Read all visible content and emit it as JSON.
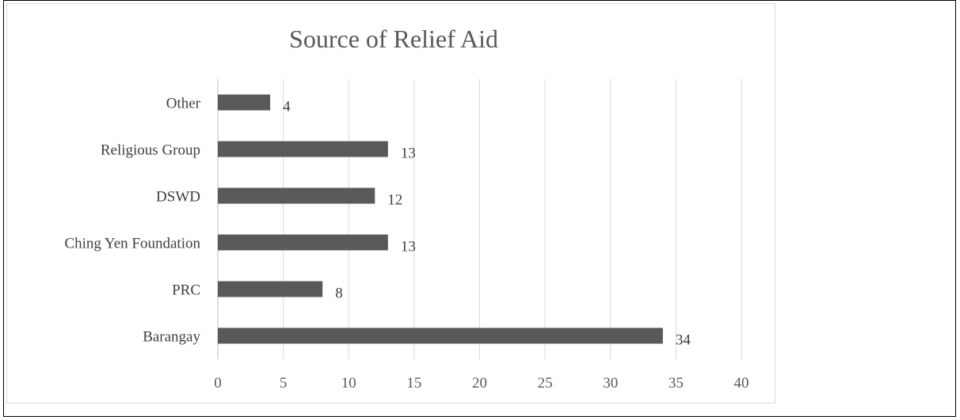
{
  "chart_data": {
    "type": "bar",
    "orientation": "horizontal",
    "title": "Source of Relief Aid",
    "categories": [
      "Barangay",
      "PRC",
      "Ching Yen Foundation",
      "DSWD",
      "Religious Group",
      "Other"
    ],
    "values": [
      34,
      8,
      13,
      12,
      13,
      4
    ],
    "xlim": [
      0,
      40
    ],
    "xticks": [
      "0",
      "5",
      "10",
      "15",
      "20",
      "25",
      "30",
      "35",
      "40"
    ],
    "grid": "vertical",
    "bar_color": "#595959",
    "data_labels": true
  }
}
